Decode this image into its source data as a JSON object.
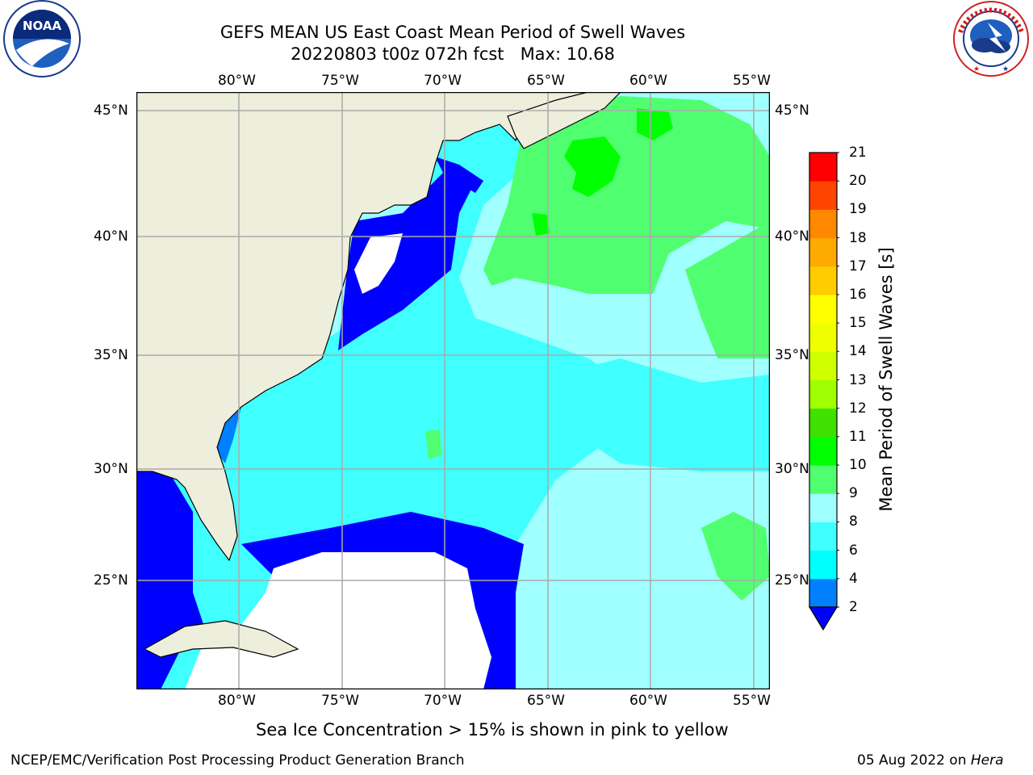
{
  "title": {
    "line1": "GEFS MEAN US East Coast Mean Period of Swell Waves",
    "line2": "20220803 t00z 072h fcst   Max: 10.68"
  },
  "logos": {
    "left": {
      "text": "NOAA",
      "ring_text": "NATIONAL OCEANIC AND ATMOSPHERIC ADMINISTRATION · U.S. DEPARTMENT OF COMMERCE"
    },
    "right": {
      "ring_text": "NATIONAL WEATHER SERVICE"
    }
  },
  "map": {
    "lon_labels": [
      "80°W",
      "75°W",
      "70°W",
      "65°W",
      "60°W",
      "55°W"
    ],
    "lat_labels": [
      "45°N",
      "40°N",
      "35°N",
      "30°N",
      "25°N"
    ]
  },
  "colorbar": {
    "label": "Mean Period of Swell Waves [s]",
    "ticks": [
      "2",
      "4",
      "6",
      "8",
      "9",
      "10",
      "11",
      "12",
      "13",
      "14",
      "15",
      "16",
      "17",
      "18",
      "19",
      "20",
      "21"
    ],
    "colors": [
      "#0000ff",
      "#0080ff",
      "#00ffff",
      "#40ffff",
      "#a0ffff",
      "#50ff70",
      "#00ff00",
      "#40e000",
      "#a0ff00",
      "#d0ff00",
      "#f0ff00",
      "#ffff00",
      "#ffcc00",
      "#ffaa00",
      "#ff8800",
      "#ff4400",
      "#ff0000"
    ],
    "land_color": "#eeeedc",
    "ocean_colors": {
      "dark_blue": "#0000ff",
      "cyan": "#40ffff",
      "light_cyan": "#a0ffff",
      "green": "#50ff70",
      "bright_green": "#00ff00"
    }
  },
  "footer": {
    "note": "Sea Ice Concentration > 15% is shown in pink to yellow",
    "left": "NCEP/EMC/Verification Post Processing Product Generation Branch",
    "right_prefix": "05 Aug 2022 on ",
    "right_host": "Hera"
  }
}
